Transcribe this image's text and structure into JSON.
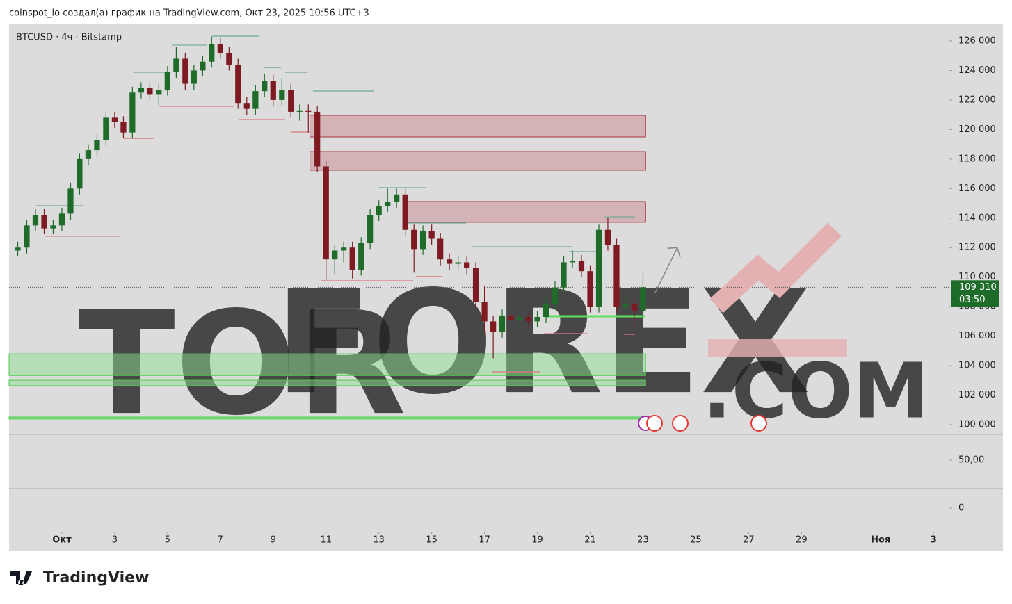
{
  "attribution": "coinspot_io создал(а) график на TradingView.com, Окт 23, 2025 10:56 UTC+3",
  "logo": "TradingView",
  "chart_data": {
    "type": "candlestick",
    "title": "BTCUSD · 4ч · Bitstamp",
    "up_color": "#1e6b2a",
    "down_color": "#7e1b22",
    "x": [
      -0.67,
      -0.33,
      0,
      0.33,
      0.67,
      1,
      1.33,
      1.67,
      2,
      2.33,
      2.67,
      3,
      3.33,
      3.67,
      4,
      4.33,
      4.67,
      5,
      5.33,
      5.67,
      6,
      6.33,
      6.67,
      7,
      7.33,
      7.67,
      8,
      8.33,
      8.67,
      9,
      9.33,
      9.67,
      10,
      10.33,
      10.67,
      11,
      11.33,
      11.67,
      12,
      12.33,
      12.67,
      13,
      13.33,
      13.67,
      14,
      14.33,
      14.67,
      15,
      15.33,
      15.67,
      16,
      16.33,
      16.67,
      17,
      17.33,
      17.67,
      18,
      18.33,
      18.67,
      19,
      19.33,
      19.67,
      20,
      20.33,
      20.67,
      21,
      21.33,
      21.67,
      22,
      22.33,
      22.67,
      23
    ],
    "open": [
      111800,
      112000,
      113500,
      114200,
      113300,
      113500,
      114300,
      116000,
      118000,
      118600,
      119300,
      120800,
      120500,
      119800,
      122500,
      122800,
      122400,
      122700,
      123900,
      124800,
      123100,
      124000,
      124600,
      125800,
      125200,
      124400,
      121800,
      121400,
      122600,
      123300,
      122000,
      122700,
      121200,
      121300,
      121200,
      117500,
      111200,
      111800,
      112000,
      110500,
      112300,
      114200,
      114800,
      115100,
      115600,
      113200,
      111900,
      113100,
      112600,
      111200,
      110900,
      111000,
      110600,
      108300,
      107000,
      106300,
      107400,
      107100,
      107300,
      107000,
      107300,
      108200,
      109300,
      111000,
      111100,
      110400,
      108000,
      113200,
      112200,
      108000,
      108200,
      107700
    ],
    "high": [
      112400,
      113900,
      114600,
      114600,
      113900,
      114700,
      116400,
      118400,
      119000,
      119700,
      121200,
      121200,
      120900,
      122900,
      123200,
      123200,
      123100,
      124300,
      125600,
      125200,
      124400,
      125000,
      126300,
      126200,
      125600,
      124800,
      122200,
      123000,
      123800,
      123700,
      123500,
      123100,
      121700,
      121700,
      121600,
      117900,
      112200,
      112400,
      112400,
      112700,
      114600,
      115200,
      116000,
      116000,
      116000,
      113600,
      113500,
      113600,
      113000,
      111600,
      111400,
      111400,
      111000,
      109400,
      107400,
      107800,
      107800,
      107700,
      107700,
      107700,
      108600,
      109700,
      111400,
      111800,
      111500,
      110800,
      113600,
      114000,
      112600,
      108900,
      108600,
      110300
    ],
    "low": [
      111400,
      111600,
      113100,
      112900,
      112900,
      113100,
      113900,
      115600,
      117600,
      118200,
      118900,
      120100,
      119400,
      119400,
      122100,
      122000,
      121600,
      122300,
      123500,
      122700,
      122700,
      123600,
      124200,
      124800,
      124000,
      121400,
      121000,
      121000,
      122200,
      121600,
      121600,
      120800,
      120600,
      119800,
      117100,
      109800,
      110200,
      111000,
      109900,
      110100,
      111900,
      113800,
      114400,
      114700,
      112800,
      110300,
      111500,
      112200,
      110800,
      110500,
      110500,
      110200,
      107900,
      106100,
      104500,
      105900,
      106700,
      106700,
      106600,
      106600,
      106900,
      107800,
      108900,
      110600,
      110000,
      107600,
      107600,
      111800,
      107600,
      107600,
      106700,
      107300
    ],
    "close": [
      112000,
      113500,
      114200,
      113300,
      113500,
      114300,
      116000,
      118000,
      118600,
      119300,
      120800,
      120500,
      119800,
      122500,
      122800,
      122400,
      122700,
      123900,
      124800,
      123100,
      124000,
      124600,
      125800,
      125200,
      124400,
      121800,
      121400,
      122600,
      123300,
      122000,
      122700,
      121200,
      121300,
      121200,
      117500,
      111200,
      111800,
      112000,
      110500,
      112300,
      114200,
      114800,
      115100,
      115600,
      113200,
      111900,
      113100,
      112600,
      111200,
      110900,
      111000,
      110600,
      108300,
      107000,
      106300,
      107400,
      107100,
      107300,
      107000,
      107300,
      108200,
      109300,
      111000,
      111100,
      110400,
      108000,
      113200,
      112200,
      108000,
      108200,
      107700,
      109310
    ],
    "xlim": [
      -1,
      34.6
    ],
    "xticks": [
      {
        "value": 1,
        "label": "Окт"
      },
      3,
      5,
      7,
      9,
      11,
      13,
      15,
      17,
      19,
      21,
      23,
      25,
      27,
      29,
      {
        "value": 32,
        "label": "Ноя"
      },
      {
        "value": 34,
        "label": "3"
      }
    ],
    "ylim": [
      99340,
      127130
    ],
    "yticks": [
      {
        "value": 100000,
        "label": "100 000"
      },
      {
        "value": 102000,
        "label": "102 000"
      },
      {
        "value": 104000,
        "label": "104 000"
      },
      {
        "value": 106000,
        "label": "106 000"
      },
      {
        "value": 108000,
        "label": "108 000"
      },
      {
        "value": 110000,
        "label": "110 000"
      },
      {
        "value": 112000,
        "label": "112 000"
      },
      {
        "value": 114000,
        "label": "114 000"
      },
      {
        "value": 116000,
        "label": "116 000"
      },
      {
        "value": 118000,
        "label": "118 000"
      },
      {
        "value": 120000,
        "label": "120 000"
      },
      {
        "value": 122000,
        "label": "122 000"
      },
      {
        "value": 124000,
        "label": "124 000"
      },
      {
        "value": 126000,
        "label": "126 000"
      }
    ],
    "last_price": {
      "value": 109310,
      "label": "109 310",
      "countdown": "03:50",
      "color": "#1e6b2a"
    },
    "zones": [
      {
        "low": 119500,
        "high": 120960,
        "x0": 10.39,
        "x1": 23.1,
        "color": "#c98a8f"
      },
      {
        "low": 117240,
        "high": 118510,
        "x0": 10.39,
        "x1": 23.1,
        "color": "#c98a8f"
      },
      {
        "low": 113710,
        "high": 115120,
        "x0": 13.92,
        "x1": 23.1,
        "color": "#c98a8f"
      },
      {
        "low": 103330,
        "high": 104800,
        "x0": -1,
        "x1": 23.1,
        "color": "#8fe08f"
      },
      {
        "low": 102640,
        "high": 103010,
        "x0": -1,
        "x1": 23.1,
        "color": "#8fe08f"
      },
      {
        "low": 100380,
        "high": 100520,
        "x0": -1,
        "x1": 23.1,
        "color": "#4fd44f"
      }
    ],
    "levels": [
      {
        "y": 126330,
        "x0": 6.68,
        "x1": 8.47,
        "color": "#6fa89a"
      },
      {
        "y": 125720,
        "x0": 5.18,
        "x1": 6.5,
        "color": "#6fa89a"
      },
      {
        "y": 124200,
        "x0": 8.66,
        "x1": 9.3,
        "color": "#6fa89a"
      },
      {
        "y": 123880,
        "x0": 3.7,
        "x1": 4.97,
        "color": "#6fa89a"
      },
      {
        "y": 123880,
        "x0": 9.45,
        "x1": 10.3,
        "color": "#6fa89a"
      },
      {
        "y": 122610,
        "x0": 10.5,
        "x1": 12.8,
        "color": "#6fa89a"
      },
      {
        "y": 116060,
        "x0": 13,
        "x1": 14.8,
        "color": "#6fa89a"
      },
      {
        "y": 114840,
        "x0": 0.03,
        "x1": 1.8,
        "color": "#6fa89a"
      },
      {
        "y": 113660,
        "x0": 14.1,
        "x1": 16.3,
        "color": "#6fa89a"
      },
      {
        "y": 112060,
        "x0": 16.5,
        "x1": 20.3,
        "color": "#6fa89a"
      },
      {
        "y": 111730,
        "x0": 20.2,
        "x1": 21.4,
        "color": "#6fa89a"
      },
      {
        "y": 114080,
        "x0": 21.55,
        "x1": 22.7,
        "color": "#6fa89a"
      },
      {
        "y": 121570,
        "x0": 4.7,
        "x1": 7.5,
        "color": "#d9787f"
      },
      {
        "y": 120680,
        "x0": 7.7,
        "x1": 9.45,
        "color": "#d9787f"
      },
      {
        "y": 119830,
        "x0": 9.66,
        "x1": 10.37,
        "color": "#d9787f"
      },
      {
        "y": 119400,
        "x0": 3.34,
        "x1": 4.5,
        "color": "#d9787f"
      },
      {
        "y": 112770,
        "x0": 0.37,
        "x1": 3.18,
        "color": "#d9787f"
      },
      {
        "y": 110040,
        "x0": 14.4,
        "x1": 15.4,
        "color": "#d9787f"
      },
      {
        "y": 109750,
        "x0": 10.8,
        "x1": 14.3,
        "color": "#d9787f"
      },
      {
        "y": 106170,
        "x0": 19.26,
        "x1": 20.9,
        "color": "#d9787f"
      },
      {
        "y": 103580,
        "x0": 17.3,
        "x1": 19.1,
        "color": "#d9787f"
      },
      {
        "y": 106120,
        "x0": 22.26,
        "x1": 22.7,
        "color": "#d9787f"
      },
      {
        "y": 107350,
        "x0": 19.3,
        "x1": 23.08,
        "color": "#5ee05e"
      }
    ],
    "projection": {
      "x": [
        23.45,
        24.3
      ],
      "y": [
        108900,
        112000
      ]
    },
    "lower_pane": {
      "ylim": [
        -22.5,
        75.4
      ],
      "yticks": [
        {
          "value": 50,
          "label": "50,00"
        },
        0
      ]
    },
    "watermark": [
      "TOR",
      "FOREX",
      ".COM"
    ]
  }
}
